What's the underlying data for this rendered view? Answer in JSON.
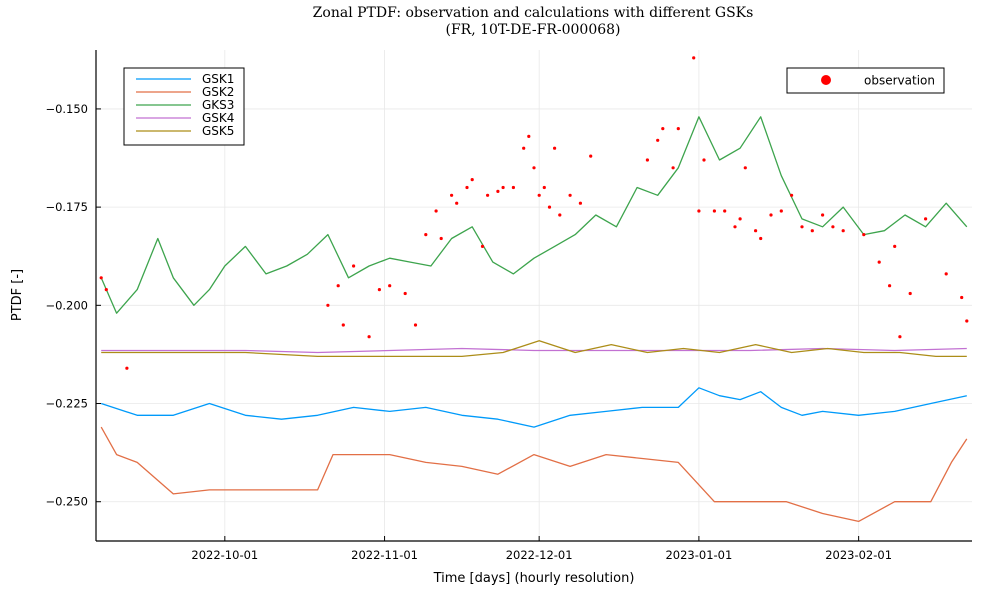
{
  "chart_data": {
    "type": "line",
    "title": "Zonal PTDF: observation and calculations with different GSKs",
    "subtitle": "(FR, 10T-DE-FR-000068)",
    "xlabel": "Time [days] (hourly resolution)",
    "ylabel": "PTDF [-]",
    "x_range": [
      "2022-09-06",
      "2023-02-23"
    ],
    "ylim": [
      -0.26,
      -0.135
    ],
    "x_ticks": [
      "2022-10-01",
      "2022-11-01",
      "2022-12-01",
      "2023-01-01",
      "2023-02-01"
    ],
    "y_ticks": [
      -0.25,
      -0.225,
      -0.2,
      -0.175,
      -0.15
    ],
    "y_tick_labels": [
      "−0.250",
      "−0.225",
      "−0.200",
      "−0.175",
      "−0.150"
    ],
    "grid": true,
    "legend_left_placement": "top-left",
    "legend_right_placement": "top-right",
    "series": [
      {
        "name": "GSK1",
        "color": "#009AFA",
        "x": [
          "2022-09-07",
          "2022-09-14",
          "2022-09-21",
          "2022-09-28",
          "2022-10-05",
          "2022-10-12",
          "2022-10-19",
          "2022-10-26",
          "2022-11-02",
          "2022-11-09",
          "2022-11-16",
          "2022-11-23",
          "2022-11-30",
          "2022-12-07",
          "2022-12-14",
          "2022-12-21",
          "2022-12-28",
          "2023-01-01",
          "2023-01-05",
          "2023-01-09",
          "2023-01-13",
          "2023-01-17",
          "2023-01-21",
          "2023-01-25",
          "2023-02-01",
          "2023-02-08",
          "2023-02-15",
          "2023-02-22"
        ],
        "values": [
          -0.225,
          -0.228,
          -0.228,
          -0.225,
          -0.228,
          -0.229,
          -0.228,
          -0.226,
          -0.227,
          -0.226,
          -0.228,
          -0.229,
          -0.231,
          -0.228,
          -0.227,
          -0.226,
          -0.226,
          -0.221,
          -0.223,
          -0.224,
          -0.222,
          -0.226,
          -0.228,
          -0.227,
          -0.228,
          -0.227,
          -0.225,
          -0.223
        ]
      },
      {
        "name": "GSK2",
        "color": "#E26F46",
        "x": [
          "2022-09-07",
          "2022-09-10",
          "2022-09-14",
          "2022-09-21",
          "2022-09-28",
          "2022-10-05",
          "2022-10-12",
          "2022-10-19",
          "2022-10-22",
          "2022-10-26",
          "2022-11-02",
          "2022-11-09",
          "2022-11-16",
          "2022-11-23",
          "2022-11-30",
          "2022-12-07",
          "2022-12-14",
          "2022-12-21",
          "2022-12-28",
          "2023-01-04",
          "2023-01-11",
          "2023-01-18",
          "2023-01-25",
          "2023-02-01",
          "2023-02-08",
          "2023-02-15",
          "2023-02-19",
          "2023-02-22"
        ],
        "values": [
          -0.231,
          -0.238,
          -0.24,
          -0.248,
          -0.247,
          -0.247,
          -0.247,
          -0.247,
          -0.238,
          -0.238,
          -0.238,
          -0.24,
          -0.241,
          -0.243,
          -0.238,
          -0.241,
          -0.238,
          -0.239,
          -0.24,
          -0.25,
          -0.25,
          -0.25,
          -0.253,
          -0.255,
          -0.25,
          -0.25,
          -0.24,
          -0.234
        ]
      },
      {
        "name": "GKS3",
        "color": "#3DA44D",
        "x": [
          "2022-09-07",
          "2022-09-10",
          "2022-09-14",
          "2022-09-18",
          "2022-09-21",
          "2022-09-25",
          "2022-09-28",
          "2022-10-01",
          "2022-10-05",
          "2022-10-09",
          "2022-10-13",
          "2022-10-17",
          "2022-10-21",
          "2022-10-25",
          "2022-10-29",
          "2022-11-02",
          "2022-11-06",
          "2022-11-10",
          "2022-11-14",
          "2022-11-18",
          "2022-11-22",
          "2022-11-26",
          "2022-11-30",
          "2022-12-04",
          "2022-12-08",
          "2022-12-12",
          "2022-12-16",
          "2022-12-20",
          "2022-12-24",
          "2022-12-28",
          "2023-01-01",
          "2023-01-05",
          "2023-01-09",
          "2023-01-13",
          "2023-01-17",
          "2023-01-21",
          "2023-01-25",
          "2023-01-29",
          "2023-02-02",
          "2023-02-06",
          "2023-02-10",
          "2023-02-14",
          "2023-02-18",
          "2023-02-22"
        ],
        "values": [
          -0.193,
          -0.202,
          -0.196,
          -0.183,
          -0.193,
          -0.2,
          -0.196,
          -0.19,
          -0.185,
          -0.192,
          -0.19,
          -0.187,
          -0.182,
          -0.193,
          -0.19,
          -0.188,
          -0.189,
          -0.19,
          -0.183,
          -0.18,
          -0.189,
          -0.192,
          -0.188,
          -0.185,
          -0.182,
          -0.177,
          -0.18,
          -0.17,
          -0.172,
          -0.165,
          -0.152,
          -0.163,
          -0.16,
          -0.152,
          -0.167,
          -0.178,
          -0.18,
          -0.175,
          -0.182,
          -0.181,
          -0.177,
          -0.18,
          -0.174,
          -0.18
        ]
      },
      {
        "name": "GSK4",
        "color": "#C271D2",
        "x": [
          "2022-09-07",
          "2022-09-21",
          "2022-10-05",
          "2022-10-19",
          "2022-11-02",
          "2022-11-16",
          "2022-11-30",
          "2022-12-14",
          "2022-12-28",
          "2023-01-11",
          "2023-01-25",
          "2023-02-08",
          "2023-02-22"
        ],
        "values": [
          -0.2115,
          -0.2115,
          -0.2115,
          -0.212,
          -0.2115,
          -0.211,
          -0.2115,
          -0.2115,
          -0.2115,
          -0.2115,
          -0.211,
          -0.2115,
          -0.211
        ]
      },
      {
        "name": "GSK5",
        "color": "#AC8D18",
        "x": [
          "2022-09-07",
          "2022-09-21",
          "2022-10-05",
          "2022-10-19",
          "2022-11-02",
          "2022-11-16",
          "2022-11-24",
          "2022-12-01",
          "2022-12-08",
          "2022-12-15",
          "2022-12-22",
          "2022-12-29",
          "2023-01-05",
          "2023-01-12",
          "2023-01-19",
          "2023-01-26",
          "2023-02-02",
          "2023-02-09",
          "2023-02-16",
          "2023-02-22"
        ],
        "values": [
          -0.212,
          -0.212,
          -0.212,
          -0.213,
          -0.213,
          -0.213,
          -0.212,
          -0.209,
          -0.212,
          -0.21,
          -0.212,
          -0.211,
          -0.212,
          -0.21,
          -0.212,
          -0.211,
          -0.212,
          -0.212,
          -0.213,
          -0.213
        ]
      }
    ],
    "scatter": {
      "name": "observation",
      "color": "#FF0000",
      "x": [
        "2022-09-07",
        "2022-09-08",
        "2022-09-12",
        "2022-10-21",
        "2022-10-23",
        "2022-10-24",
        "2022-10-26",
        "2022-10-29",
        "2022-10-31",
        "2022-11-02",
        "2022-11-05",
        "2022-11-07",
        "2022-11-09",
        "2022-11-11",
        "2022-11-12",
        "2022-11-14",
        "2022-11-15",
        "2022-11-17",
        "2022-11-18",
        "2022-11-20",
        "2022-11-21",
        "2022-11-23",
        "2022-11-24",
        "2022-11-26",
        "2022-11-28",
        "2022-11-29",
        "2022-11-30",
        "2022-12-01",
        "2022-12-02",
        "2022-12-03",
        "2022-12-04",
        "2022-12-05",
        "2022-12-07",
        "2022-12-09",
        "2022-12-11",
        "2022-12-22",
        "2022-12-24",
        "2022-12-25",
        "2022-12-27",
        "2022-12-28",
        "2022-12-31",
        "2023-01-01",
        "2023-01-02",
        "2023-01-04",
        "2023-01-06",
        "2023-01-08",
        "2023-01-09",
        "2023-01-10",
        "2023-01-12",
        "2023-01-13",
        "2023-01-15",
        "2023-01-17",
        "2023-01-19",
        "2023-01-21",
        "2023-01-23",
        "2023-01-25",
        "2023-01-27",
        "2023-01-29",
        "2023-02-02",
        "2023-02-05",
        "2023-02-07",
        "2023-02-08",
        "2023-02-09",
        "2023-02-11",
        "2023-02-14",
        "2023-02-18",
        "2023-02-21",
        "2023-02-22"
      ],
      "values": [
        -0.193,
        -0.196,
        -0.216,
        -0.2,
        -0.195,
        -0.205,
        -0.19,
        -0.208,
        -0.196,
        -0.195,
        -0.197,
        -0.205,
        -0.182,
        -0.176,
        -0.183,
        -0.172,
        -0.174,
        -0.17,
        -0.168,
        -0.185,
        -0.172,
        -0.171,
        -0.17,
        -0.17,
        -0.16,
        -0.157,
        -0.165,
        -0.172,
        -0.17,
        -0.175,
        -0.16,
        -0.177,
        -0.172,
        -0.174,
        -0.162,
        -0.163,
        -0.158,
        -0.155,
        -0.165,
        -0.155,
        -0.137,
        -0.176,
        -0.163,
        -0.176,
        -0.176,
        -0.18,
        -0.178,
        -0.165,
        -0.181,
        -0.183,
        -0.177,
        -0.176,
        -0.172,
        -0.18,
        -0.181,
        -0.177,
        -0.18,
        -0.181,
        -0.182,
        -0.189,
        -0.195,
        -0.185,
        -0.208,
        -0.197,
        -0.178,
        -0.192,
        -0.198,
        -0.204
      ]
    }
  }
}
